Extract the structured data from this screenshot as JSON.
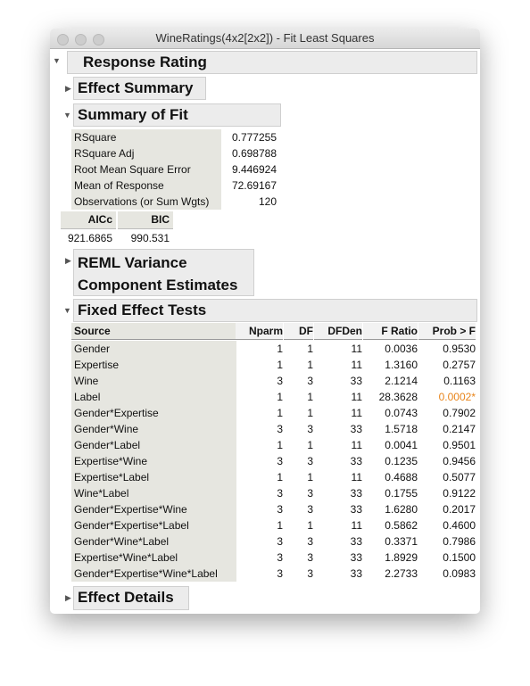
{
  "window": {
    "title": "WineRatings(4x2[2x2]) - Fit Least Squares"
  },
  "report": {
    "title": "Response Rating",
    "effect_summary": {
      "title": "Effect Summary"
    },
    "summary_of_fit": {
      "title": "Summary of Fit",
      "rows": [
        [
          "RSquare",
          "0.777255"
        ],
        [
          "RSquare Adj",
          "0.698788"
        ],
        [
          "Root Mean Square Error",
          "9.446924"
        ],
        [
          "Mean of Response",
          "72.69167"
        ],
        [
          "Observations (or Sum Wgts)",
          "120"
        ]
      ],
      "ic_columns": [
        "AICc",
        "BIC"
      ],
      "ic_values": [
        "921.6865",
        "990.531"
      ]
    },
    "reml": {
      "title": "REML Variance Component Estimates"
    },
    "fixed_effect_tests": {
      "title": "Fixed Effect Tests",
      "columns": [
        "Source",
        "Nparm",
        "DF",
        "DFDen",
        "F Ratio",
        "Prob > F"
      ],
      "rows": [
        [
          "Gender",
          "1",
          "1",
          "11",
          "0.0036",
          "0.9530"
        ],
        [
          "Expertise",
          "1",
          "1",
          "11",
          "1.3160",
          "0.2757"
        ],
        [
          "Wine",
          "3",
          "3",
          "33",
          "2.1214",
          "0.1163"
        ],
        [
          "Label",
          "1",
          "1",
          "11",
          "28.3628",
          "0.0002*"
        ],
        [
          "Gender*Expertise",
          "1",
          "1",
          "11",
          "0.0743",
          "0.7902"
        ],
        [
          "Gender*Wine",
          "3",
          "3",
          "33",
          "1.5718",
          "0.2147"
        ],
        [
          "Gender*Label",
          "1",
          "1",
          "11",
          "0.0041",
          "0.9501"
        ],
        [
          "Expertise*Wine",
          "3",
          "3",
          "33",
          "0.1235",
          "0.9456"
        ],
        [
          "Expertise*Label",
          "1",
          "1",
          "11",
          "0.4688",
          "0.5077"
        ],
        [
          "Wine*Label",
          "3",
          "3",
          "33",
          "0.1755",
          "0.9122"
        ],
        [
          "Gender*Expertise*Wine",
          "3",
          "3",
          "33",
          "1.6280",
          "0.2017"
        ],
        [
          "Gender*Expertise*Label",
          "1",
          "1",
          "11",
          "0.5862",
          "0.4600"
        ],
        [
          "Gender*Wine*Label",
          "3",
          "3",
          "33",
          "0.3371",
          "0.7986"
        ],
        [
          "Expertise*Wine*Label",
          "3",
          "3",
          "33",
          "1.8929",
          "0.1500"
        ],
        [
          "Gender*Expertise*Wine*Label",
          "3",
          "3",
          "33",
          "2.2733",
          "0.0983"
        ]
      ]
    },
    "effect_details": {
      "title": "Effect Details"
    }
  }
}
